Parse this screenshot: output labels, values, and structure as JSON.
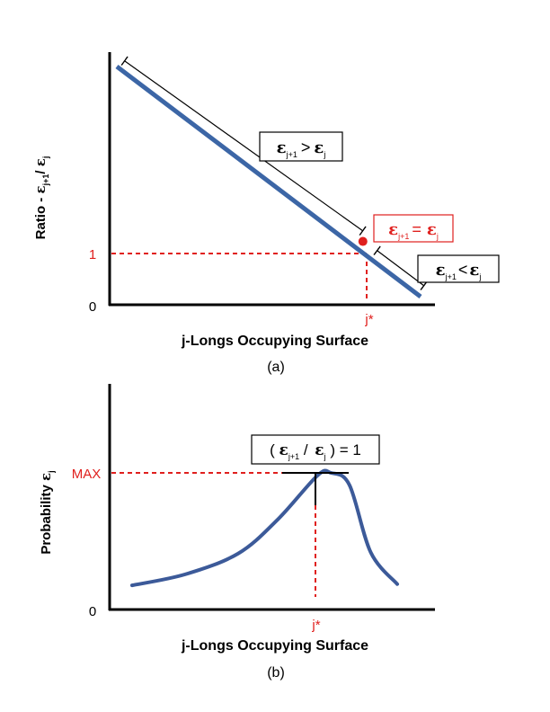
{
  "chart_data": [
    {
      "type": "line",
      "panel_label": "(a)",
      "xlabel": "j-Longs Occupying Surface",
      "ylabel": {
        "prefix": "Ratio - ",
        "num": "ε",
        "num_sub": "j+1",
        "slash": "/ ",
        "den": "ε",
        "den_sub": "j"
      },
      "y_ticks": [
        "1",
        "0"
      ],
      "x_marker": "j*",
      "series": [
        {
          "values": [
            [
              0,
              1.0
            ],
            [
              1,
              0.0
            ]
          ]
        }
      ],
      "crossing_point": {
        "x": 0.81,
        "y": 0.24
      },
      "annotations": [
        {
          "id": "upper",
          "left": "ε",
          "left_sub": "j+1",
          "op": ">",
          "right": "ε",
          "right_sub": "j"
        },
        {
          "id": "equal",
          "left": "ε",
          "left_sub": "j+1",
          "op": "=",
          "right": "ε",
          "right_sub": "j"
        },
        {
          "id": "lower",
          "left": "ε",
          "left_sub": "j+1",
          "op": "<",
          "right": "ε",
          "right_sub": "j"
        }
      ],
      "colors": {
        "line": "#3c66a6",
        "reference": "#e0201e",
        "axis": "#000000"
      }
    },
    {
      "type": "line",
      "panel_label": "(b)",
      "xlabel": "j-Longs Occupying Surface",
      "ylabel": {
        "prefix": "Probability ",
        "sym": "ε",
        "sym_sub": "j"
      },
      "y_ticks": [
        "MAX",
        "0"
      ],
      "x_marker": "j*",
      "peak_annotation": {
        "open": "( ",
        "left": "ε",
        "left_sub": "j+1",
        "slash": " / ",
        "right": "ε",
        "right_sub": "j",
        "close": " ) = 1"
      },
      "series": [
        {
          "values": [
            [
              0.0,
              0.08
            ],
            [
              0.2,
              0.17
            ],
            [
              0.4,
              0.34
            ],
            [
              0.55,
              0.62
            ],
            [
              0.7,
              0.98
            ],
            [
              0.75,
              1.0
            ],
            [
              0.82,
              0.9
            ],
            [
              0.9,
              0.35
            ],
            [
              1.0,
              0.09
            ]
          ]
        }
      ],
      "colors": {
        "line": "#3c5a99",
        "reference": "#e0201e",
        "axis": "#000000"
      }
    }
  ]
}
